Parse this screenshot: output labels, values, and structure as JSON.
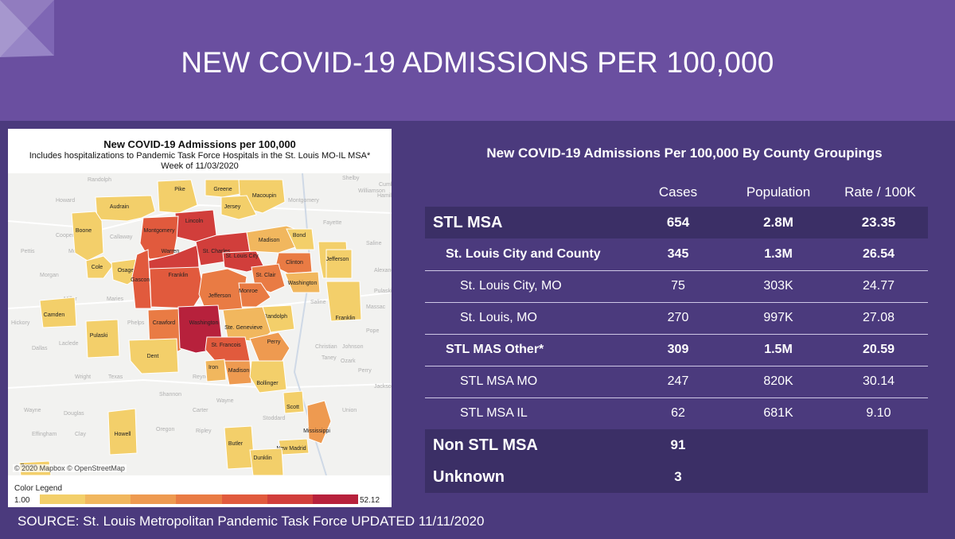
{
  "slide": {
    "title": "NEW COVID-19 ADMISSIONS PER 100,000",
    "source": "SOURCE: St. Louis Metropolitan Pandemic Task Force UPDATED 11/11/2020"
  },
  "map": {
    "title": "New COVID-19 Admissions per 100,000",
    "subtitle": "Includes hospitalizations to Pandemic Task Force Hospitals in the St. Louis MO-IL MSA*",
    "week": "Week of 11/03/2020",
    "attribution": "© 2020 Mapbox © OpenStreetMap",
    "legend": {
      "title": "Color Legend",
      "min": "1.00",
      "max": "52.12",
      "colors": [
        "#f3cf6a",
        "#f1b75e",
        "#ee9a50",
        "#e97b44",
        "#e15a3d",
        "#d13e3b",
        "#b7213c"
      ]
    },
    "counties": [
      {
        "name": "Pike",
        "level": 0
      },
      {
        "name": "Audrain",
        "level": 0
      },
      {
        "name": "Boone",
        "level": 0
      },
      {
        "name": "Greene",
        "level": 0
      },
      {
        "name": "Macoupin",
        "level": 0
      },
      {
        "name": "Jersey",
        "level": 0
      },
      {
        "name": "Lincoln",
        "level": 5
      },
      {
        "name": "Montgomery",
        "level": 4
      },
      {
        "name": "Warren",
        "level": 5
      },
      {
        "name": "St. Charles",
        "level": 5
      },
      {
        "name": "Madison",
        "level": 1
      },
      {
        "name": "Bond",
        "level": 0
      },
      {
        "name": "St. Louis City",
        "level": 5
      },
      {
        "name": "Clinton",
        "level": 3
      },
      {
        "name": "Marion",
        "level": 0
      },
      {
        "name": "Cole",
        "level": 0
      },
      {
        "name": "Osage",
        "level": 0
      },
      {
        "name": "Gasconade",
        "level": 4
      },
      {
        "name": "Franklin",
        "level": 4
      },
      {
        "name": "St. Clair",
        "level": 3
      },
      {
        "name": "Washington",
        "level": 1
      },
      {
        "name": "Jefferson",
        "level": 3
      },
      {
        "name": "Monroe",
        "level": 3
      },
      {
        "name": "Camden",
        "level": 0
      },
      {
        "name": "Randolph",
        "level": 0
      },
      {
        "name": "Franklin",
        "level": 0
      },
      {
        "name": "Pulaski",
        "level": 0
      },
      {
        "name": "Crawford",
        "level": 3
      },
      {
        "name": "Washington",
        "level": 6
      },
      {
        "name": "Ste. Genevieve",
        "level": 1
      },
      {
        "name": "St. Francois",
        "level": 4
      },
      {
        "name": "Perry",
        "level": 2
      },
      {
        "name": "Dent",
        "level": 0
      },
      {
        "name": "Iron",
        "level": 1
      },
      {
        "name": "Madison",
        "level": 2
      },
      {
        "name": "Bollinger",
        "level": 0
      },
      {
        "name": "Scott",
        "level": 0
      },
      {
        "name": "Mississippi",
        "level": 2
      },
      {
        "name": "Howell",
        "level": 0
      },
      {
        "name": "Butler",
        "level": 0
      },
      {
        "name": "New Madrid",
        "level": 0
      },
      {
        "name": "Dunklin",
        "level": 0
      },
      {
        "name": "Boone",
        "level": 0
      },
      {
        "name": "Jefferson",
        "level": 0
      }
    ],
    "background_places": [
      "Shelby",
      "Fayette",
      "Montgomery",
      "Callaway",
      "Miller",
      "Maries",
      "Phelps",
      "Texas",
      "Shannon",
      "Reynolds",
      "Wayne",
      "Carter",
      "Ripley",
      "Oregon",
      "Stoddard",
      "Douglas",
      "Wright",
      "Laclede",
      "Dallas",
      "Hickory",
      "Morgan",
      "Pettis",
      "Cooper",
      "Moniteau",
      "Howard",
      "Randolph",
      "Saline",
      "Christian",
      "Taney",
      "Ozark",
      "Perry",
      "Jackson",
      "Union",
      "Johnson",
      "Pope",
      "Massac",
      "Alexander",
      "Pulaski",
      "Williamson",
      "Saline",
      "Hamilton",
      "Wayne",
      "Effingham",
      "Clay",
      "Cumb"
    ]
  },
  "table": {
    "title": "New COVID-19 Admissions Per 100,000 By County Groupings",
    "headers": {
      "cases": "Cases",
      "population": "Population",
      "rate": "Rate / 100K"
    },
    "rows": [
      {
        "label": "STL MSA",
        "cases": "654",
        "population": "2.8M",
        "rate": "23.35",
        "level": 0
      },
      {
        "label": "St. Louis City and County",
        "cases": "345",
        "population": "1.3M",
        "rate": "26.54",
        "level": 1
      },
      {
        "label": "St. Louis City, MO",
        "cases": "75",
        "population": "303K",
        "rate": "24.77",
        "level": 2
      },
      {
        "label": "St. Louis, MO",
        "cases": "270",
        "population": "997K",
        "rate": "27.08",
        "level": 2
      },
      {
        "label": "STL MAS Other*",
        "cases": "309",
        "population": "1.5M",
        "rate": "20.59",
        "level": 1
      },
      {
        "label": "STL MSA MO",
        "cases": "247",
        "population": "820K",
        "rate": "30.14",
        "level": 2
      },
      {
        "label": "STL MSA IL",
        "cases": "62",
        "population": "681K",
        "rate": "9.10",
        "level": 2
      },
      {
        "label": "Non STL MSA",
        "cases": "91",
        "population": "",
        "rate": "",
        "level": 0
      },
      {
        "label": "Unknown",
        "cases": "3",
        "population": "",
        "rate": "",
        "level": 0
      }
    ]
  }
}
